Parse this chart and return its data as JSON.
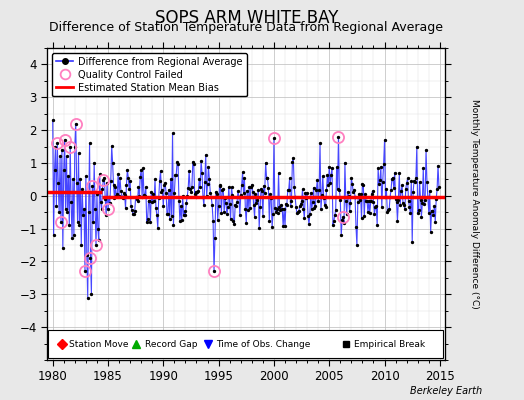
{
  "title": "SOPS ARM WHITE BAY",
  "subtitle": "Difference of Station Temperature Data from Regional Average",
  "ylabel_right": "Monthly Temperature Anomaly Difference (°C)",
  "xlim": [
    1979.5,
    2015.5
  ],
  "ylim": [
    -5,
    4.5
  ],
  "yticks": [
    -4,
    -3,
    -2,
    -1,
    0,
    1,
    2,
    3,
    4
  ],
  "xticks": [
    1980,
    1985,
    1990,
    1995,
    2000,
    2005,
    2010,
    2015
  ],
  "bias_value": -0.05,
  "bias_start": 1984.5,
  "bias_end": 2015.5,
  "bias_early_start": 1979.5,
  "bias_early_end": 1984.5,
  "bias_early_value": 0.12,
  "record_gap_x": 1983.2,
  "record_gap_y": -4.25,
  "background_color": "#e8e8e8",
  "plot_bg_color": "#ffffff",
  "line_color": "#3333ff",
  "bias_color": "#ff0000",
  "qc_color": "#ff80c0",
  "title_fontsize": 12,
  "subtitle_fontsize": 9,
  "watermark": "Berkeley Earth"
}
